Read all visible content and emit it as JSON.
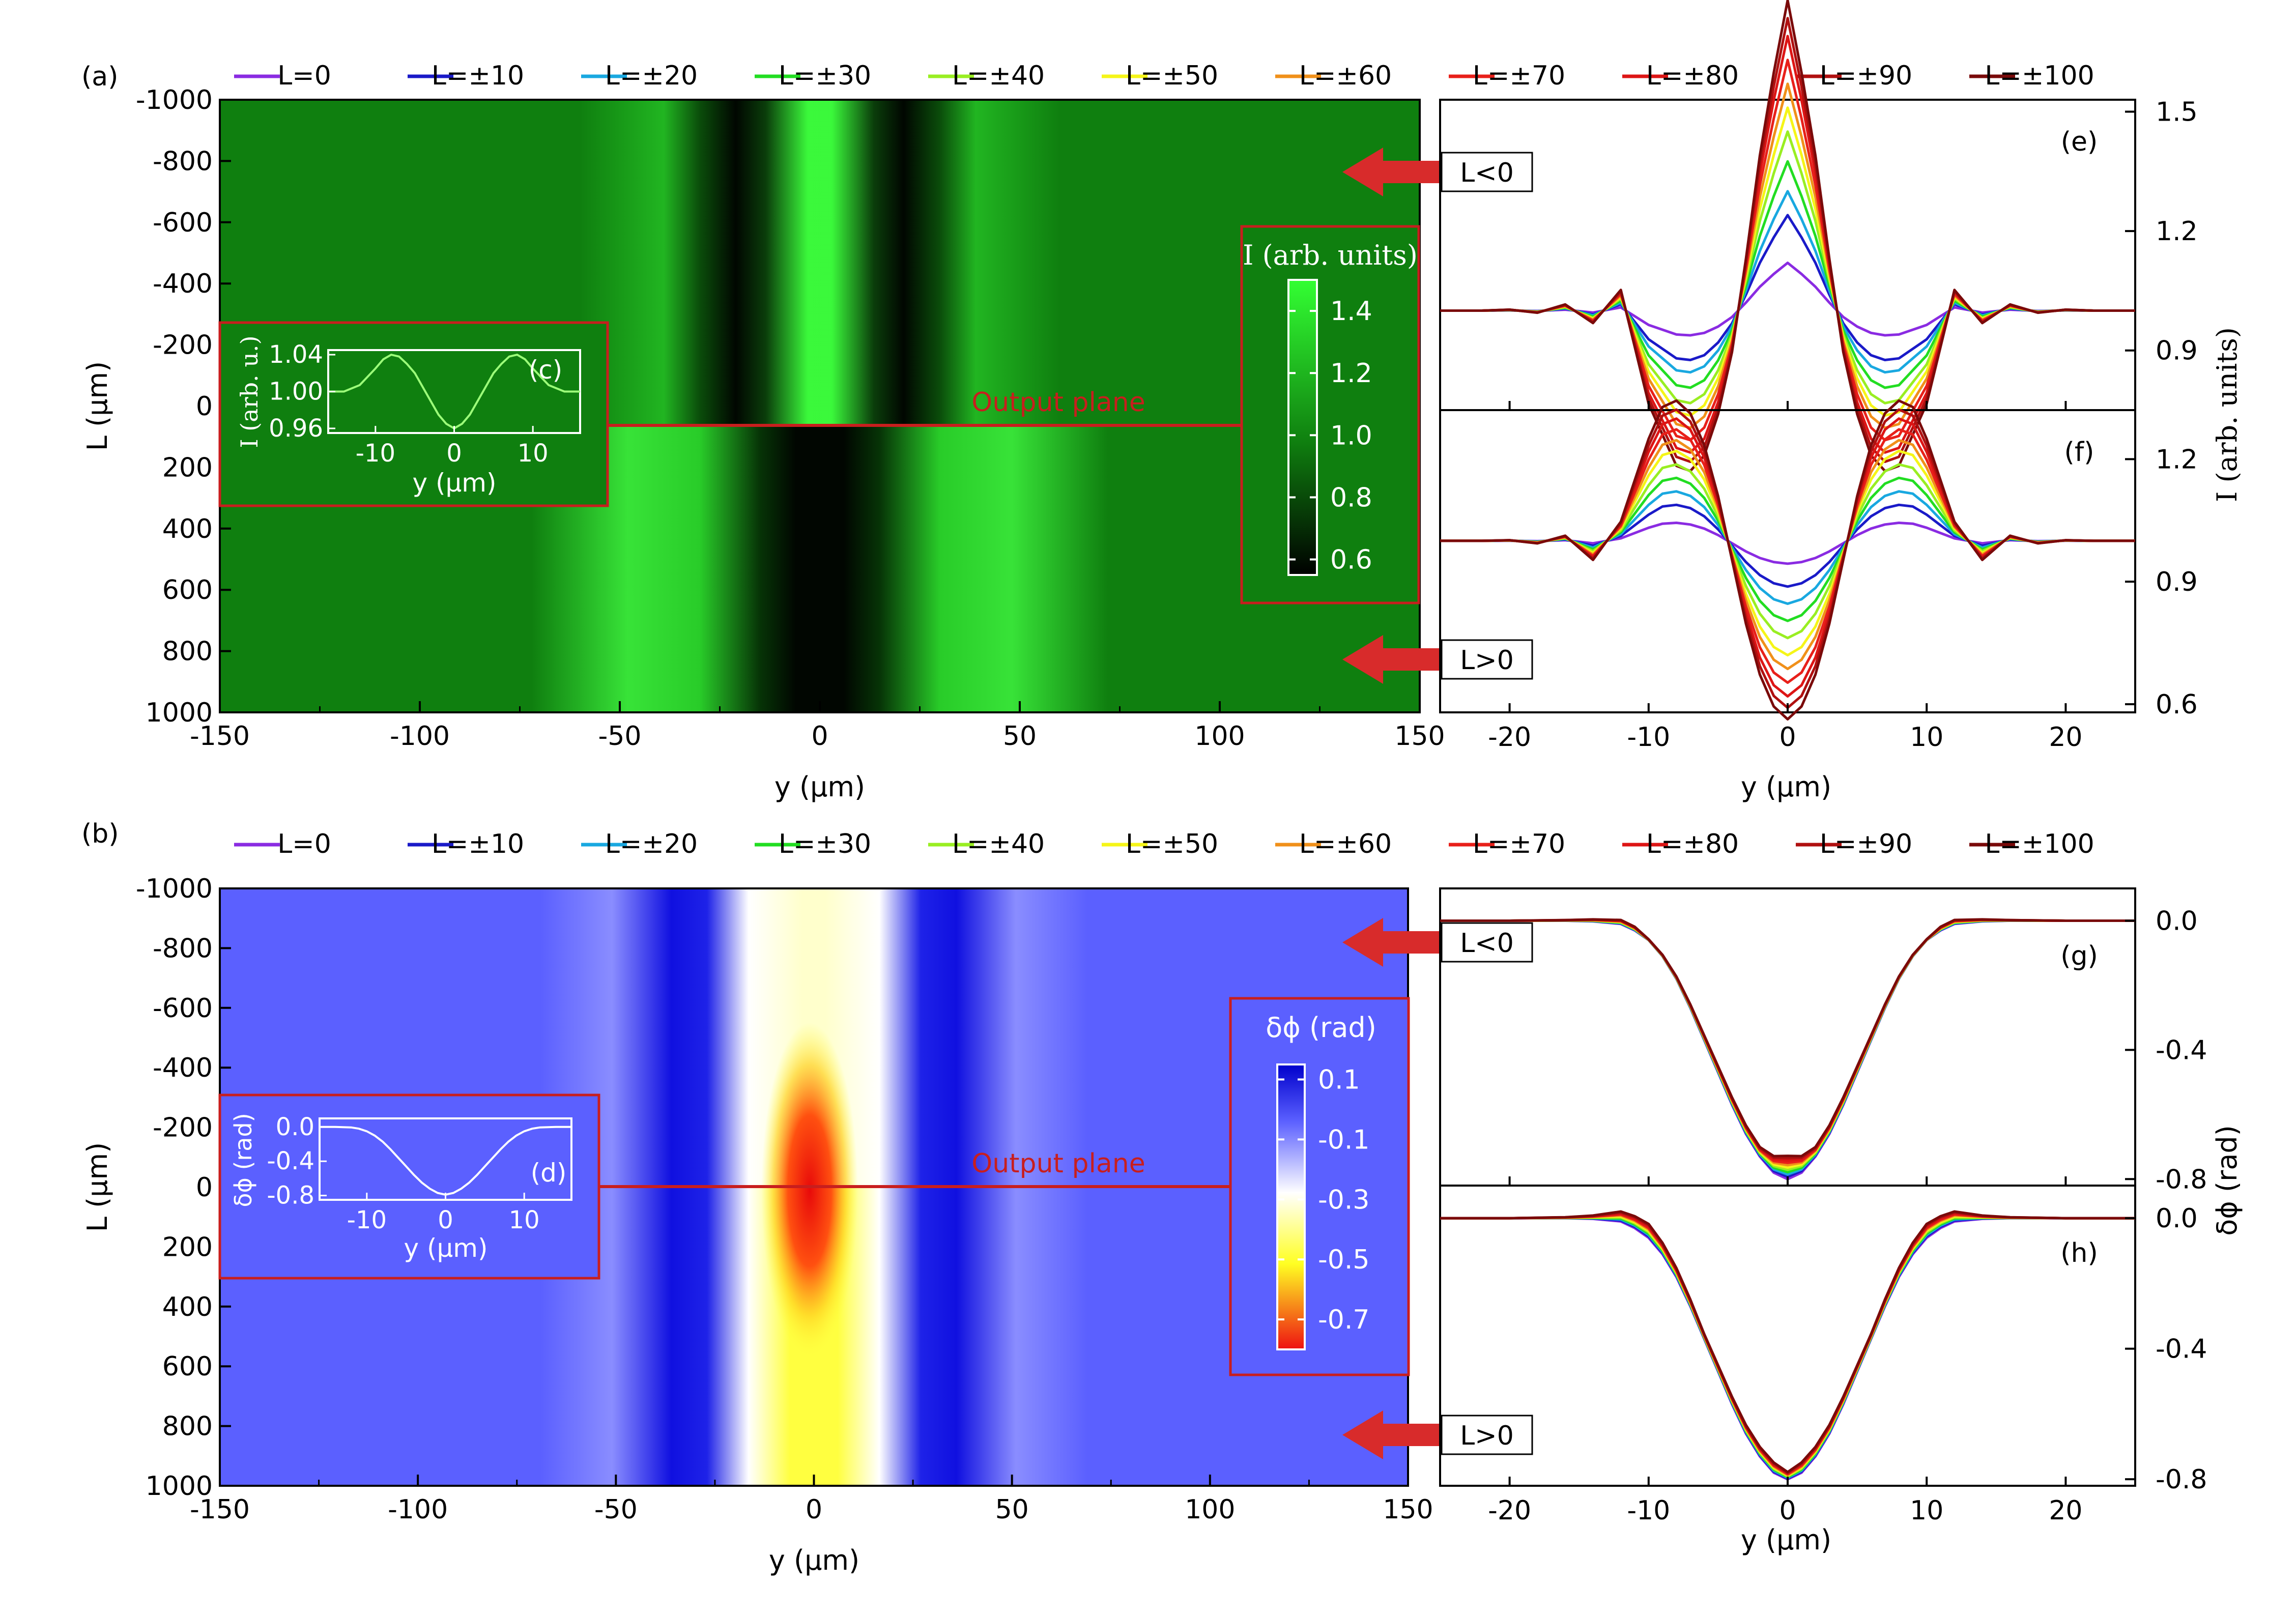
{
  "figure": {
    "panel_a_label": "(a)",
    "panel_b_label": "(b)"
  },
  "colors": {
    "intensity_background": "#0f7f0f",
    "phase_background": "#5b60ff",
    "marker_red": "#d82b2b",
    "line_colors": [
      "#8a2be2",
      "#1a1ac8",
      "#19a8e0",
      "#22dd22",
      "#99ee22",
      "#f5f518",
      "#f0901a",
      "#e8201a",
      "#dd1515",
      "#b01010",
      "#7a0a0a"
    ]
  },
  "legend": {
    "entries": [
      "L=0",
      "L=±10",
      "L=±20",
      "L=±30",
      "L=±40",
      "L=±50",
      "L=±60",
      "L=±70",
      "L=±80",
      "L=±90",
      "L=±100"
    ]
  },
  "chart_data": [
    {
      "id": "a",
      "type": "heatmap",
      "title": "",
      "xlabel": "y (μm)",
      "ylabel": "L (μm)",
      "xlim": [
        -150,
        150
      ],
      "ylim": [
        -1000,
        1000
      ],
      "x_ticks": [
        "-150",
        "-100",
        "-50",
        "0",
        "50",
        "100",
        "150"
      ],
      "y_ticks": [
        "-1000",
        "-800",
        "-600",
        "-400",
        "-200",
        "0",
        "200",
        "400",
        "600",
        "800",
        "1000"
      ],
      "annotation": "Output plane",
      "colorbar": {
        "label": "I (arb. units)",
        "ticks": [
          "1.4",
          "1.2",
          "1.0",
          "0.8",
          "0.6"
        ],
        "range": [
          0.55,
          1.5
        ],
        "colors": [
          "#000000",
          "#0f7f0f",
          "#33ff33"
        ]
      }
    },
    {
      "id": "c",
      "type": "line",
      "label": "(c)",
      "xlabel": "y (μm)",
      "ylabel": "I (arb. u.)",
      "xlim": [
        -16,
        16
      ],
      "ylim": [
        0.955,
        1.045
      ],
      "x_ticks": [
        "-10",
        "0",
        "10"
      ],
      "y_ticks": [
        "1.04",
        "1.00",
        "0.96"
      ],
      "series": [
        {
          "x": [
            -16,
            -14,
            -12,
            -10,
            -9,
            -8,
            -7,
            -6,
            -5,
            -4,
            -3,
            -2,
            -1,
            0,
            1,
            2,
            3,
            4,
            5,
            6,
            7,
            8,
            9,
            10,
            12,
            14,
            16
          ],
          "y": [
            1.0,
            1.0,
            1.007,
            1.025,
            1.035,
            1.04,
            1.038,
            1.03,
            1.02,
            1.005,
            0.99,
            0.975,
            0.965,
            0.96,
            0.965,
            0.975,
            0.99,
            1.005,
            1.02,
            1.03,
            1.038,
            1.04,
            1.035,
            1.025,
            1.007,
            1.0,
            1.0
          ]
        }
      ]
    },
    {
      "id": "e",
      "type": "line",
      "label": "(e)",
      "tag": "L<0",
      "xlim": [
        -25,
        25
      ],
      "ylim": [
        0.75,
        1.53
      ],
      "x_ticks": [],
      "y_ticks": [
        "1.5",
        "1.2",
        "0.9"
      ],
      "series_x": [
        -25,
        -22,
        -20,
        -18,
        -16,
        -14,
        -12,
        -10,
        -8,
        -7,
        -6,
        -5,
        -4,
        -3,
        -2,
        -1,
        0,
        1,
        2,
        3,
        4,
        5,
        6,
        7,
        8,
        10,
        12,
        14,
        16,
        18,
        20,
        22,
        25
      ],
      "series_shape": [
        0,
        0,
        0.001,
        -0.002,
        0.006,
        -0.012,
        0.02,
        -0.09,
        -0.15,
        -0.155,
        -0.14,
        -0.1,
        -0.04,
        0.05,
        0.15,
        0.23,
        0.3,
        0.23,
        0.15,
        0.05,
        -0.04,
        -0.1,
        -0.14,
        -0.155,
        -0.15,
        -0.09,
        0.02,
        -0.012,
        0.006,
        -0.002,
        0.001,
        0,
        0
      ],
      "series_scale": [
        0.4,
        0.8,
        1.0,
        1.25,
        1.5,
        1.7,
        1.9,
        2.1,
        2.3,
        2.45,
        2.6
      ],
      "baseline": 1.0
    },
    {
      "id": "f",
      "type": "line",
      "label": "(f)",
      "tag": "L>0",
      "xlabel": "y (μm)",
      "ylabel": "I (arb. units)",
      "xlim": [
        -25,
        25
      ],
      "ylim": [
        0.58,
        1.32
      ],
      "x_ticks": [
        "-20",
        "-10",
        "0",
        "10",
        "20"
      ],
      "y_ticks": [
        "1.2",
        "0.9",
        "0.6"
      ],
      "series_x": [
        -25,
        -22,
        -20,
        -18,
        -16,
        -14,
        -12,
        -10,
        -9,
        -8,
        -7,
        -6,
        -5,
        -4,
        -3,
        -2,
        -1,
        0,
        1,
        2,
        3,
        4,
        5,
        6,
        7,
        8,
        9,
        10,
        12,
        14,
        16,
        18,
        20,
        22,
        25
      ],
      "series_shape": [
        0,
        0,
        0.001,
        -0.004,
        0.008,
        -0.03,
        0.03,
        0.16,
        0.21,
        0.22,
        0.2,
        0.15,
        0.07,
        -0.03,
        -0.13,
        -0.21,
        -0.26,
        -0.28,
        -0.26,
        -0.21,
        -0.13,
        -0.03,
        0.07,
        0.15,
        0.2,
        0.22,
        0.21,
        0.16,
        0.03,
        -0.03,
        0.008,
        -0.004,
        0.001,
        0,
        0
      ],
      "series_scale": [
        0.2,
        0.4,
        0.55,
        0.7,
        0.85,
        1.0,
        1.12,
        1.24,
        1.36,
        1.46,
        1.56
      ],
      "baseline": 1.0
    },
    {
      "id": "b",
      "type": "heatmap",
      "title": "",
      "xlabel": "y (μm)",
      "ylabel": "L (μm)",
      "xlim": [
        -150,
        150
      ],
      "ylim": [
        -1000,
        1000
      ],
      "x_ticks": [
        "-150",
        "-100",
        "-50",
        "0",
        "50",
        "100",
        "150"
      ],
      "y_ticks": [
        "-1000",
        "-800",
        "-600",
        "-400",
        "-200",
        "0",
        "200",
        "400",
        "600",
        "800",
        "1000"
      ],
      "annotation": "Output plane",
      "colorbar": {
        "label": "δϕ (rad)",
        "ticks": [
          "0.1",
          "-0.1",
          "-0.3",
          "-0.5",
          "-0.7"
        ],
        "range": [
          -0.8,
          0.15
        ],
        "colors": [
          "#ee1111",
          "#ffff22",
          "#ffffff",
          "#5b60ff",
          "#0000cc"
        ]
      }
    },
    {
      "id": "d",
      "type": "line",
      "label": "(d)",
      "xlabel": "y (μm)",
      "ylabel": "δϕ (rad)",
      "xlim": [
        -16,
        16
      ],
      "ylim": [
        -0.85,
        0.1
      ],
      "x_ticks": [
        "-10",
        "0",
        "10"
      ],
      "y_ticks": [
        "0.0",
        "-0.4",
        "-0.8"
      ],
      "series": [
        {
          "x": [
            -16,
            -14,
            -12,
            -11,
            -10,
            -9,
            -8,
            -7,
            -6,
            -5,
            -4,
            -3,
            -2,
            -1,
            0,
            1,
            2,
            3,
            4,
            5,
            6,
            7,
            8,
            9,
            10,
            11,
            12,
            14,
            16
          ],
          "y": [
            0,
            0,
            -0.005,
            -0.02,
            -0.05,
            -0.1,
            -0.17,
            -0.26,
            -0.36,
            -0.46,
            -0.56,
            -0.65,
            -0.72,
            -0.77,
            -0.79,
            -0.77,
            -0.72,
            -0.65,
            -0.56,
            -0.46,
            -0.36,
            -0.26,
            -0.17,
            -0.1,
            -0.05,
            -0.02,
            -0.005,
            0,
            0
          ]
        }
      ]
    },
    {
      "id": "g",
      "type": "line",
      "label": "(g)",
      "tag": "L<0",
      "xlim": [
        -25,
        25
      ],
      "ylim": [
        -0.82,
        0.1
      ],
      "x_ticks": [],
      "y_ticks": [
        "0.0",
        "-0.4",
        "-0.8"
      ],
      "series_x": [
        -25,
        -20,
        -16,
        -14,
        -12,
        -11,
        -10,
        -9,
        -8,
        -7,
        -6,
        -5,
        -4,
        -3,
        -2,
        -1,
        0,
        1,
        2,
        3,
        4,
        5,
        6,
        7,
        8,
        9,
        10,
        11,
        12,
        14,
        16,
        20,
        25
      ],
      "base_y": [
        0,
        0,
        0.0,
        -0.002,
        -0.01,
        -0.03,
        -0.06,
        -0.11,
        -0.18,
        -0.27,
        -0.37,
        -0.47,
        -0.57,
        -0.66,
        -0.73,
        -0.78,
        -0.8,
        -0.78,
        -0.73,
        -0.66,
        -0.57,
        -0.47,
        -0.37,
        -0.27,
        -0.18,
        -0.11,
        -0.06,
        -0.03,
        -0.01,
        -0.002,
        0.0,
        0,
        0
      ],
      "bump": [
        0,
        0,
        0.002,
        0.006,
        0.012,
        0.01,
        0.0,
        0,
        0,
        0,
        0,
        0,
        0,
        0,
        0,
        0.02,
        0.04,
        0.02,
        0,
        0,
        0,
        0,
        0,
        0,
        0,
        0,
        0.0,
        0.01,
        0.012,
        0.006,
        0.002,
        0,
        0
      ],
      "series_scale": [
        0.0,
        0.1,
        0.2,
        0.3,
        0.4,
        0.5,
        0.6,
        0.7,
        0.8,
        0.9,
        1.0
      ]
    },
    {
      "id": "h",
      "type": "line",
      "label": "(h)",
      "tag": "L>0",
      "xlabel": "y (μm)",
      "ylabel": "δϕ (rad)",
      "xlim": [
        -25,
        25
      ],
      "ylim": [
        -0.82,
        0.1
      ],
      "x_ticks": [
        "-20",
        "-10",
        "0",
        "10",
        "20"
      ],
      "y_ticks": [
        "0.0",
        "-0.4",
        "-0.8"
      ],
      "series_x": [
        -25,
        -20,
        -16,
        -14,
        -12,
        -11,
        -10,
        -9,
        -8,
        -7,
        -6,
        -5,
        -4,
        -3,
        -2,
        -1,
        0,
        1,
        2,
        3,
        4,
        5,
        6,
        7,
        8,
        9,
        10,
        11,
        12,
        14,
        16,
        20,
        25
      ],
      "base_y": [
        0,
        0,
        0.0,
        -0.002,
        -0.01,
        -0.03,
        -0.06,
        -0.11,
        -0.18,
        -0.27,
        -0.37,
        -0.47,
        -0.57,
        -0.66,
        -0.73,
        -0.78,
        -0.8,
        -0.78,
        -0.73,
        -0.66,
        -0.57,
        -0.47,
        -0.37,
        -0.27,
        -0.18,
        -0.11,
        -0.06,
        -0.03,
        -0.01,
        -0.002,
        0.0,
        0,
        0
      ],
      "bump": [
        0,
        0,
        0.003,
        0.01,
        0.03,
        0.035,
        0.04,
        0.03,
        0.02,
        0.01,
        0,
        0,
        0,
        0,
        0,
        0,
        -0.01,
        0,
        0,
        0,
        0,
        0,
        0,
        0.01,
        0.02,
        0.03,
        0.04,
        0.035,
        0.03,
        0.01,
        0.003,
        0,
        0
      ],
      "series_scale": [
        0.0,
        0.1,
        0.2,
        0.3,
        0.4,
        0.5,
        0.6,
        0.7,
        0.8,
        0.9,
        1.0
      ]
    }
  ]
}
